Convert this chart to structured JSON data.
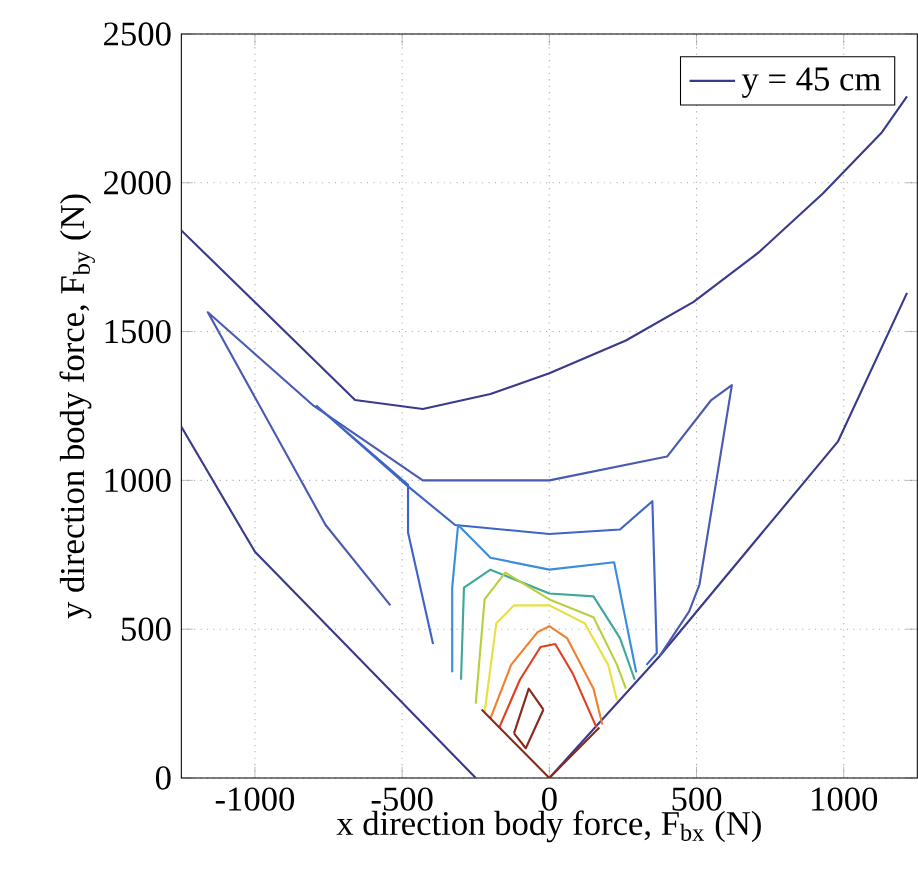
{
  "chart_data": {
    "type": "line",
    "xlabel": "x direction body force, F$_{bx}$ (N)",
    "ylabel": "y direction body force, F$_{by}$ (N)",
    "xlim": [
      -1250,
      1250
    ],
    "ylim": [
      0,
      2500
    ],
    "xticks": [
      -1000,
      -500,
      0,
      500,
      1000
    ],
    "yticks": [
      0,
      500,
      1000,
      1500,
      2000,
      2500
    ],
    "grid": true,
    "legend": "top right",
    "marker": "none",
    "line_style": "solid",
    "series": [
      {
        "name": "y = 45 cm",
        "color": "#3a3a8c",
        "x": [
          -1250,
          -660,
          -430,
          -200,
          0,
          260,
          490,
          710,
          930,
          1130,
          1215
        ],
        "values": [
          1840,
          1270,
          1240,
          1290,
          1360,
          1470,
          1600,
          1765,
          1965,
          2170,
          2290
        ]
      },
      {
        "color": "#3a3a8c",
        "x": [
          -1250,
          -1000,
          -250
        ],
        "values": [
          1180,
          760,
          0
        ]
      },
      {
        "color": "#3a3a8c",
        "x": [
          0,
          375,
          980,
          1215
        ],
        "values": [
          0,
          410,
          1130,
          1630
        ]
      },
      {
        "color": "#4a5ab0",
        "x": [
          -540,
          -760,
          -1160,
          -800,
          -430,
          0,
          400,
          550,
          620,
          510,
          475,
          375
        ],
        "values": [
          580,
          850,
          1565,
          1250,
          1000,
          1000,
          1080,
          1270,
          1320,
          650,
          560,
          410
        ]
      },
      {
        "color": "#3f64c8",
        "x": [
          -395,
          -480,
          -480,
          -790,
          -480,
          -320,
          0,
          240,
          350,
          365,
          330
        ],
        "values": [
          450,
          825,
          985,
          1250,
          980,
          850,
          820,
          835,
          930,
          420,
          380
        ]
      },
      {
        "color": "#3c8cdc",
        "x": [
          -330,
          -330,
          -310,
          -200,
          0,
          220,
          295
        ],
        "values": [
          355,
          640,
          850,
          740,
          700,
          725,
          355
        ]
      },
      {
        "color": "#3fa89a",
        "x": [
          -300,
          -290,
          -200,
          0,
          150,
          240,
          290
        ],
        "values": [
          330,
          640,
          700,
          620,
          610,
          470,
          330
        ]
      },
      {
        "color": "#b8d040",
        "x": [
          -250,
          -220,
          -150,
          0,
          150,
          230,
          260
        ],
        "values": [
          250,
          600,
          690,
          600,
          540,
          380,
          300
        ]
      },
      {
        "color": "#e8e040",
        "x": [
          -220,
          -180,
          -120,
          0,
          120,
          200,
          230
        ],
        "values": [
          220,
          520,
          580,
          580,
          520,
          380,
          260
        ]
      },
      {
        "color": "#f08030",
        "x": [
          -200,
          -130,
          -40,
          0,
          60,
          150,
          180
        ],
        "values": [
          200,
          380,
          490,
          510,
          470,
          300,
          180
        ]
      },
      {
        "color": "#e04020",
        "x": [
          -170,
          -100,
          -30,
          20,
          80,
          160
        ],
        "values": [
          170,
          330,
          440,
          450,
          350,
          170
        ]
      },
      {
        "color": "#8b2a1a",
        "x": [
          -230,
          0,
          170
        ],
        "values": [
          230,
          0,
          170
        ]
      },
      {
        "color": "#8b2a1a",
        "x": [
          -120,
          -70,
          -20
        ],
        "values": [
          150,
          300,
          230
        ]
      },
      {
        "color": "#8b2a1a",
        "x": [
          -20,
          -80,
          -120
        ],
        "values": [
          230,
          100,
          150
        ]
      }
    ]
  }
}
